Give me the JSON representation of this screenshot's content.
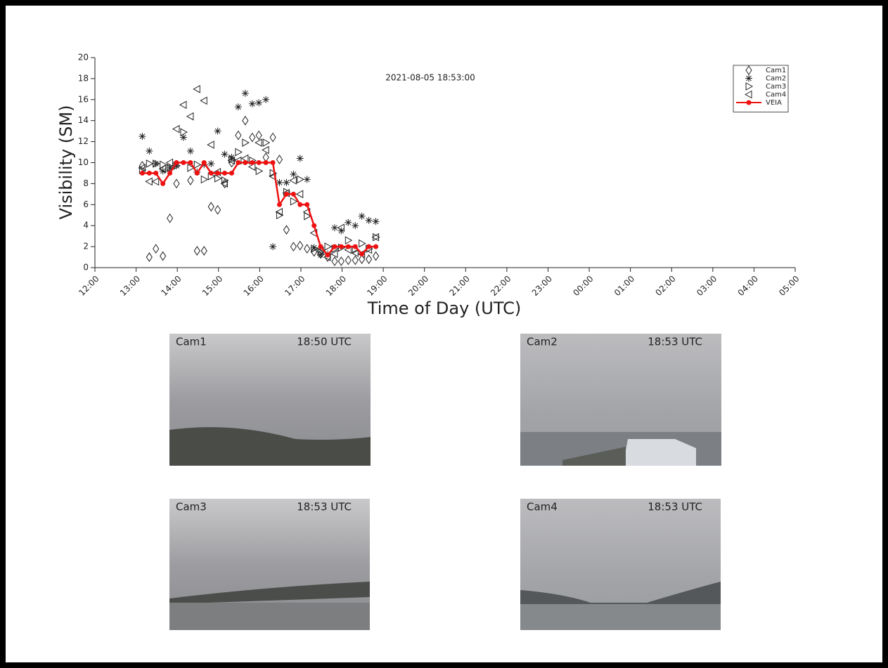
{
  "chart_data": {
    "type": "scatter",
    "title": "2021-08-05 18:53:00",
    "x_label": "Time of Day (UTC)",
    "y_label": "Visibility (SM)",
    "xlim": [
      12,
      29
    ],
    "xticks": [
      {
        "value": 12,
        "label": "12:00"
      },
      {
        "value": 13,
        "label": "13:00"
      },
      {
        "value": 14,
        "label": "14:00"
      },
      {
        "value": 15,
        "label": "15:00"
      },
      {
        "value": 16,
        "label": "16:00"
      },
      {
        "value": 17,
        "label": "17:00"
      },
      {
        "value": 18,
        "label": "18:00"
      },
      {
        "value": 19,
        "label": "19:00"
      },
      {
        "value": 20,
        "label": "20:00"
      },
      {
        "value": 21,
        "label": "21:00"
      },
      {
        "value": 22,
        "label": "22:00"
      },
      {
        "value": 23,
        "label": "23:00"
      },
      {
        "value": 24,
        "label": "00:00"
      },
      {
        "value": 25,
        "label": "01:00"
      },
      {
        "value": 26,
        "label": "02:00"
      },
      {
        "value": 27,
        "label": "03:00"
      },
      {
        "value": 28,
        "label": "04:00"
      },
      {
        "value": 29,
        "label": "05:00"
      }
    ],
    "ylim": [
      0,
      20
    ],
    "yticks": [
      0,
      2,
      4,
      6,
      8,
      10,
      12,
      14,
      16,
      18,
      20
    ],
    "legend": "upper right",
    "x": [
      13.15,
      13.32,
      13.48,
      13.65,
      13.82,
      13.98,
      14.15,
      14.32,
      14.48,
      14.65,
      14.82,
      14.98,
      15.15,
      15.32,
      15.48,
      15.65,
      15.82,
      15.98,
      16.15,
      16.32,
      16.48,
      16.65,
      16.82,
      16.98,
      17.15,
      17.32,
      17.48,
      17.65,
      17.82,
      17.98,
      18.15,
      18.32,
      18.48,
      18.65,
      18.82
    ],
    "series": [
      {
        "name": "Cam1",
        "color": "#222222",
        "marker": "diamond",
        "values": [
          9.7,
          1.0,
          1.8,
          1.1,
          4.7,
          8.0,
          null,
          8.3,
          1.6,
          1.6,
          5.8,
          5.5,
          8.0,
          10.0,
          12.6,
          14.0,
          12.4,
          12.6,
          10.5,
          12.4,
          10.3,
          3.6,
          2.0,
          2.1,
          1.8,
          1.5,
          1.3,
          1.0,
          0.6,
          0.6,
          0.7,
          0.7,
          0.8,
          0.8,
          1.1
        ]
      },
      {
        "name": "Cam2",
        "color": "#222222",
        "marker": "asterisk",
        "values": [
          12.5,
          11.1,
          9.9,
          9.2,
          9.5,
          9.7,
          12.4,
          11.1,
          9.1,
          9.8,
          9.9,
          13.0,
          10.8,
          10.5,
          15.3,
          16.6,
          15.6,
          15.7,
          16.0,
          2.0,
          8.1,
          8.1,
          8.9,
          10.4,
          8.4,
          1.9,
          1.2,
          1.3,
          3.8,
          3.5,
          4.3,
          4.0,
          4.9,
          4.5,
          4.4
        ]
      },
      {
        "name": "Cam3",
        "color": "#222222",
        "marker": "triangle-right",
        "values": [
          9.3,
          9.9,
          9.9,
          9.8,
          9.5,
          9.7,
          12.9,
          9.5,
          9.8,
          8.4,
          8.7,
          8.5,
          8.3,
          10.3,
          11.0,
          11.9,
          10.2,
          9.2,
          11.9,
          9.0,
          5.0,
          7.2,
          6.3,
          8.4,
          4.9,
          1.8,
          1.5,
          2.0,
          1.8,
          1.9,
          2.6,
          1.7,
          2.3,
          1.8,
          2.9
        ]
      },
      {
        "name": "Cam4",
        "color": "#222222",
        "marker": "triangle-left",
        "values": [
          9.5,
          8.2,
          8.2,
          9.4,
          10.0,
          13.2,
          15.5,
          14.4,
          17.0,
          15.9,
          11.7,
          9.1,
          8.0,
          10.2,
          10.2,
          10.4,
          9.6,
          11.9,
          11.2,
          8.7,
          5.3,
          7.1,
          8.3,
          7.0,
          5.3,
          3.3,
          1.6,
          1.0,
          1.3,
          3.8,
          1.7,
          1.4,
          1.3,
          1.7,
          2.9
        ]
      },
      {
        "name": "VEIA",
        "color": "#ee1111",
        "marker": "circle",
        "line": true,
        "values": [
          9,
          9,
          9,
          8,
          9,
          10,
          10,
          10,
          9,
          10,
          9,
          9,
          9,
          9,
          10,
          10,
          10,
          10,
          10,
          10,
          6,
          7,
          7,
          6,
          6,
          4,
          2,
          1.2,
          2,
          2,
          2,
          2,
          1.3,
          2,
          2
        ]
      }
    ]
  },
  "cameras": [
    {
      "name": "Cam1",
      "time": "18:50 UTC"
    },
    {
      "name": "Cam2",
      "time": "18:53 UTC"
    },
    {
      "name": "Cam3",
      "time": "18:53 UTC"
    },
    {
      "name": "Cam4",
      "time": "18:53 UTC"
    }
  ]
}
